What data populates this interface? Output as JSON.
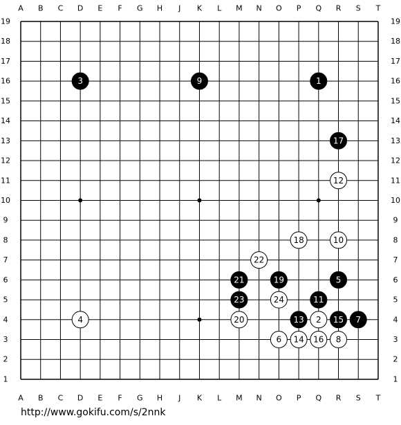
{
  "board": {
    "columns": [
      "A",
      "B",
      "C",
      "D",
      "E",
      "F",
      "G",
      "H",
      "J",
      "K",
      "L",
      "M",
      "N",
      "O",
      "P",
      "Q",
      "R",
      "S",
      "T"
    ],
    "rows": [
      19,
      18,
      17,
      16,
      15,
      14,
      13,
      12,
      11,
      10,
      9,
      8,
      7,
      6,
      5,
      4,
      3,
      2,
      1
    ],
    "stones": [
      {
        "number": 1,
        "color": "black",
        "col": "Q",
        "row": 16
      },
      {
        "number": 2,
        "color": "white",
        "col": "Q",
        "row": 4
      },
      {
        "number": 3,
        "color": "black",
        "col": "D",
        "row": 16
      },
      {
        "number": 4,
        "color": "white",
        "col": "D",
        "row": 4
      },
      {
        "number": 5,
        "color": "black",
        "col": "R",
        "row": 6
      },
      {
        "number": 6,
        "color": "white",
        "col": "O",
        "row": 3
      },
      {
        "number": 7,
        "color": "black",
        "col": "S",
        "row": 4
      },
      {
        "number": 8,
        "color": "white",
        "col": "R",
        "row": 3
      },
      {
        "number": 9,
        "color": "black",
        "col": "K",
        "row": 16
      },
      {
        "number": 10,
        "color": "white",
        "col": "R",
        "row": 8
      },
      {
        "number": 11,
        "color": "black",
        "col": "Q",
        "row": 5
      },
      {
        "number": 12,
        "color": "white",
        "col": "R",
        "row": 11
      },
      {
        "number": 13,
        "color": "black",
        "col": "P",
        "row": 4
      },
      {
        "number": 14,
        "color": "white",
        "col": "P",
        "row": 3
      },
      {
        "number": 15,
        "color": "black",
        "col": "R",
        "row": 4
      },
      {
        "number": 16,
        "color": "white",
        "col": "Q",
        "row": 3
      },
      {
        "number": 17,
        "color": "black",
        "col": "R",
        "row": 13
      },
      {
        "number": 18,
        "color": "white",
        "col": "P",
        "row": 8
      },
      {
        "number": 19,
        "color": "black",
        "col": "O",
        "row": 6
      },
      {
        "number": 20,
        "color": "white",
        "col": "M",
        "row": 4
      },
      {
        "number": 21,
        "color": "black",
        "col": "M",
        "row": 6
      },
      {
        "number": 22,
        "color": "white",
        "col": "N",
        "row": 7
      },
      {
        "number": 23,
        "color": "black",
        "col": "M",
        "row": 5
      },
      {
        "number": 24,
        "color": "white",
        "col": "O",
        "row": 5
      }
    ]
  },
  "footer": {
    "url": "http://www.gokifu.com/s/2nnk"
  }
}
